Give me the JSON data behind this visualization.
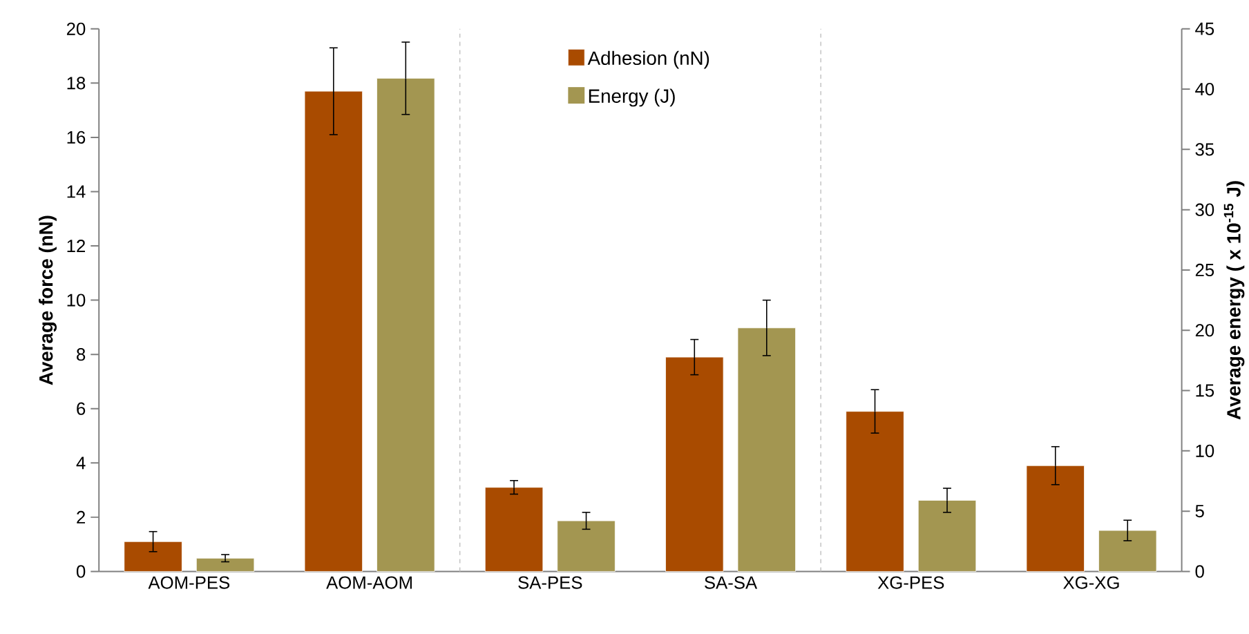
{
  "chart_data": {
    "type": "bar",
    "categories": [
      "AOM-PES",
      "AOM-AOM",
      "SA-PES",
      "SA-SA",
      "XG-PES",
      "XG-XG"
    ],
    "series": [
      {
        "name": "Adhesion (nN)",
        "color": "#a94b00",
        "values": [
          1.1,
          17.7,
          3.1,
          7.9,
          5.9,
          3.9
        ],
        "errors": [
          0.37,
          1.6,
          0.25,
          0.65,
          0.8,
          0.7
        ]
      },
      {
        "name": "Energy (J)",
        "color": "#a39651",
        "axis": "y2",
        "values": [
          1.1,
          40.9,
          4.2,
          20.2,
          5.9,
          3.4
        ],
        "errors": [
          0.3,
          3.0,
          0.7,
          2.3,
          1.0,
          0.85
        ]
      }
    ],
    "ylabel": "Average force (nN)",
    "y2label": "Average energy ( x 10$^{-15}$ J)",
    "ylim": [
      0,
      20
    ],
    "yticks": [
      0,
      2,
      4,
      6,
      8,
      10,
      12,
      14,
      16,
      18,
      20
    ],
    "y2lim": [
      0,
      45
    ],
    "y2ticks": [
      0,
      5,
      10,
      15,
      20,
      25,
      30,
      35,
      40,
      45
    ],
    "legend": "top",
    "grid": false
  }
}
